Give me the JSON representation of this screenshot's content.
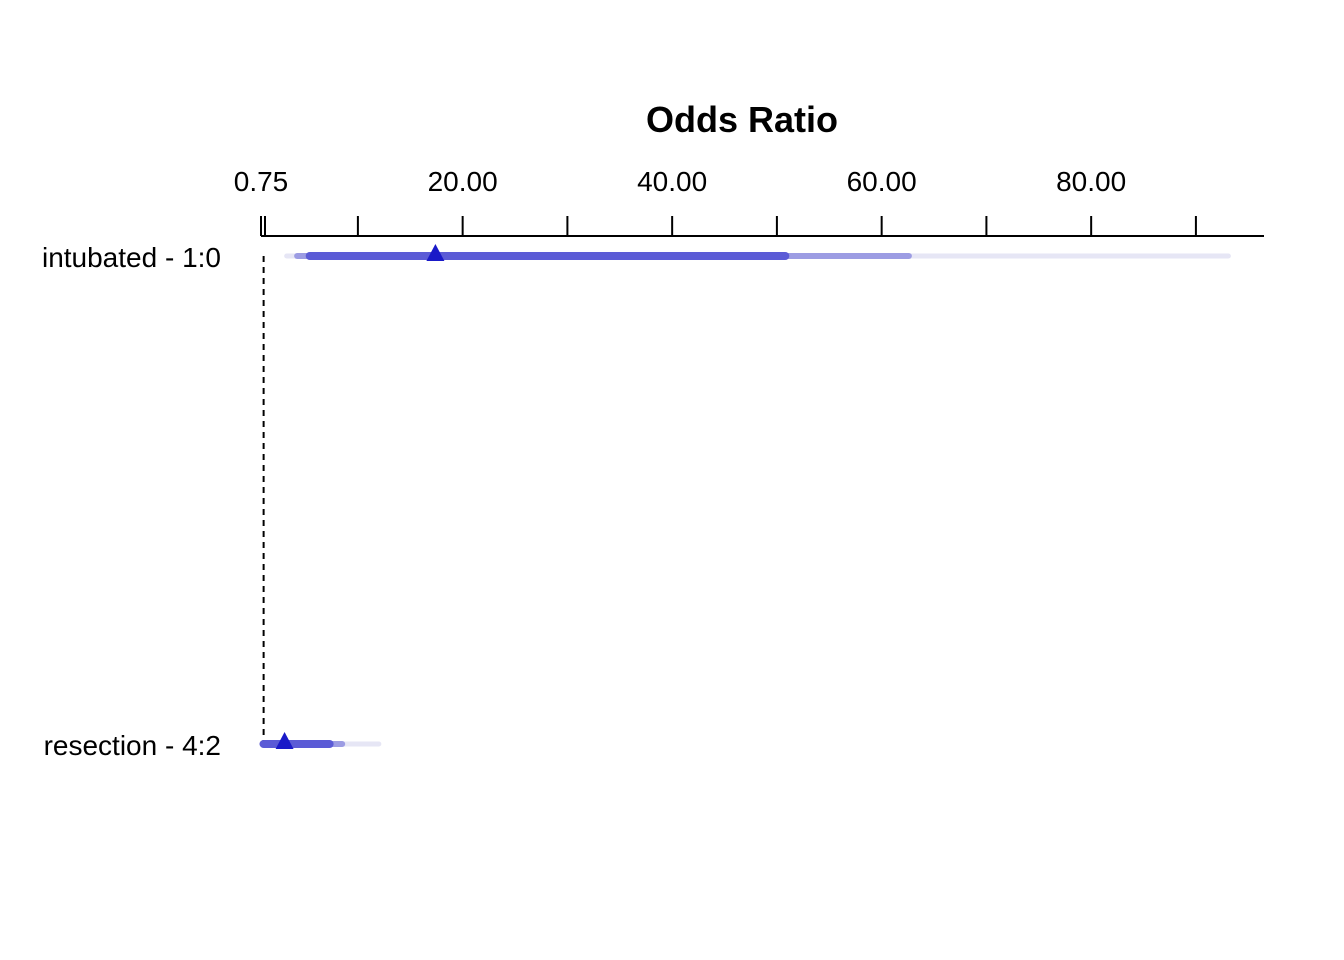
{
  "chart_data": {
    "type": "forest",
    "title": "Odds Ratio",
    "xlabel": "Odds Ratio",
    "ylabel": "",
    "x_scale": "linear",
    "xlim": [
      0.75,
      96.5
    ],
    "reference_line": 1,
    "ticks": {
      "labeled": [
        {
          "value": 0.75,
          "label": "0.75"
        },
        {
          "value": 20,
          "label": "20.00"
        },
        {
          "value": 40,
          "label": "40.00"
        },
        {
          "value": 60,
          "label": "60.00"
        },
        {
          "value": 80,
          "label": "80.00"
        }
      ],
      "minor": [
        10,
        30,
        50,
        70,
        90
      ]
    },
    "rows": [
      {
        "label": "intubated - 1:0",
        "estimate": 17.4,
        "ci_50": [
          5.4,
          50.8
        ],
        "ci_90": [
          4.2,
          62.6
        ],
        "ci_99": [
          3.2,
          93.1
        ]
      },
      {
        "label": "resection - 4:2",
        "estimate": 3.0,
        "ci_50": [
          1.0,
          7.3
        ],
        "ci_90": [
          0.9,
          8.5
        ],
        "ci_99": [
          0.8,
          12.0
        ]
      }
    ],
    "colors": {
      "point": "#1a1ac8",
      "ci_50": "#5b5bd6",
      "ci_90": "#9c9ce3",
      "ci_99": "#e6e6f5",
      "axis": "#000000"
    },
    "grid": false,
    "legend": "none"
  }
}
